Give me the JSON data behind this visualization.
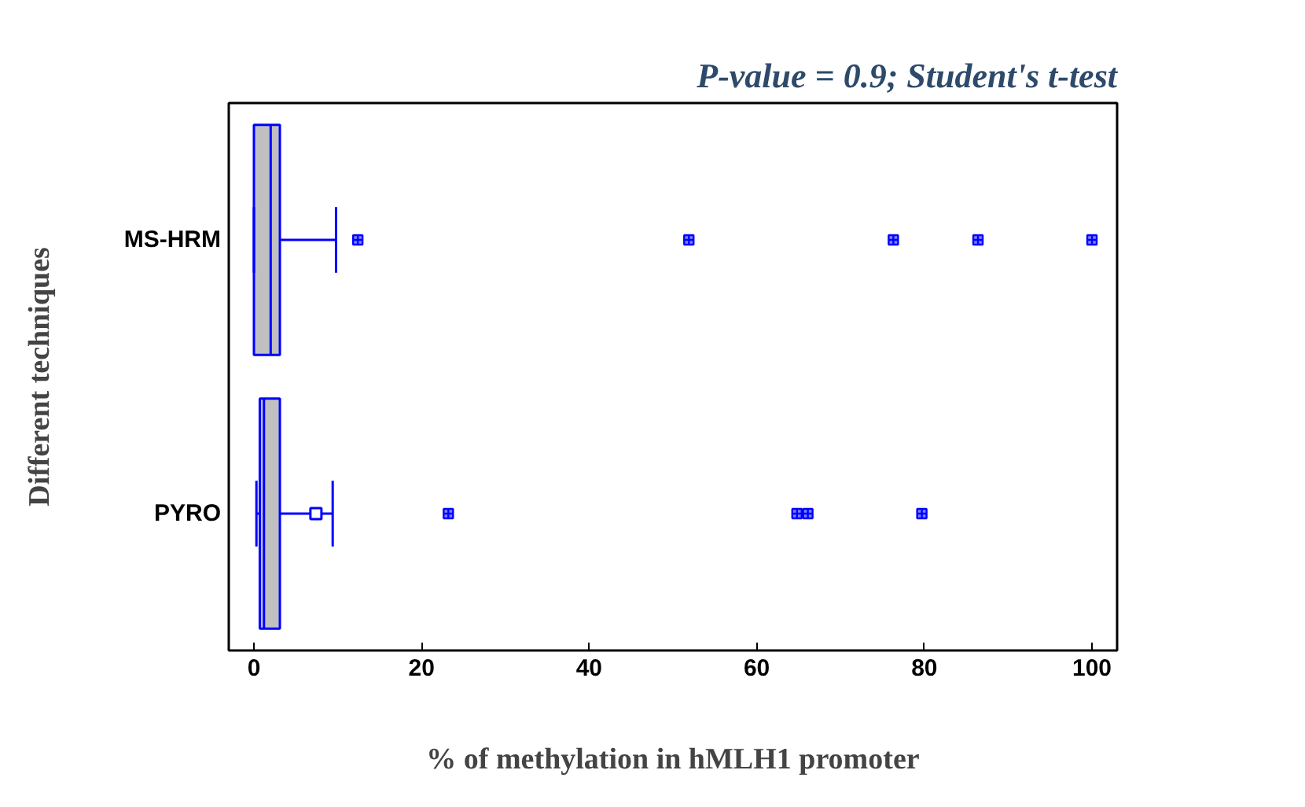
{
  "chart_data": {
    "type": "box",
    "orientation": "horizontal",
    "title": "P-value = 0.9; Student's t-test",
    "xlabel": "% of methylation in hMLH1 promoter",
    "ylabel": "Different techniques",
    "categories": [
      "MS-HRM",
      "PYRO"
    ],
    "series": [
      {
        "color": "#0000ff",
        "boxes": [
          {
            "low": 0,
            "q1": 0,
            "median": 2.0,
            "q3": 3.1,
            "high": 9.8,
            "outliers": [
              12.4,
              51.9,
              76.3,
              86.4,
              100
            ]
          },
          {
            "low": 0.3,
            "q1": 0.7,
            "median": 1.2,
            "q3": 3.1,
            "high": 9.4,
            "mean": 7.4,
            "outliers": [
              23.2,
              64.8,
              66.1,
              79.7
            ]
          }
        ]
      }
    ],
    "xlim": [
      -3,
      103
    ],
    "xticks": [
      0,
      20,
      40,
      60,
      80,
      100
    ],
    "grid": false
  }
}
